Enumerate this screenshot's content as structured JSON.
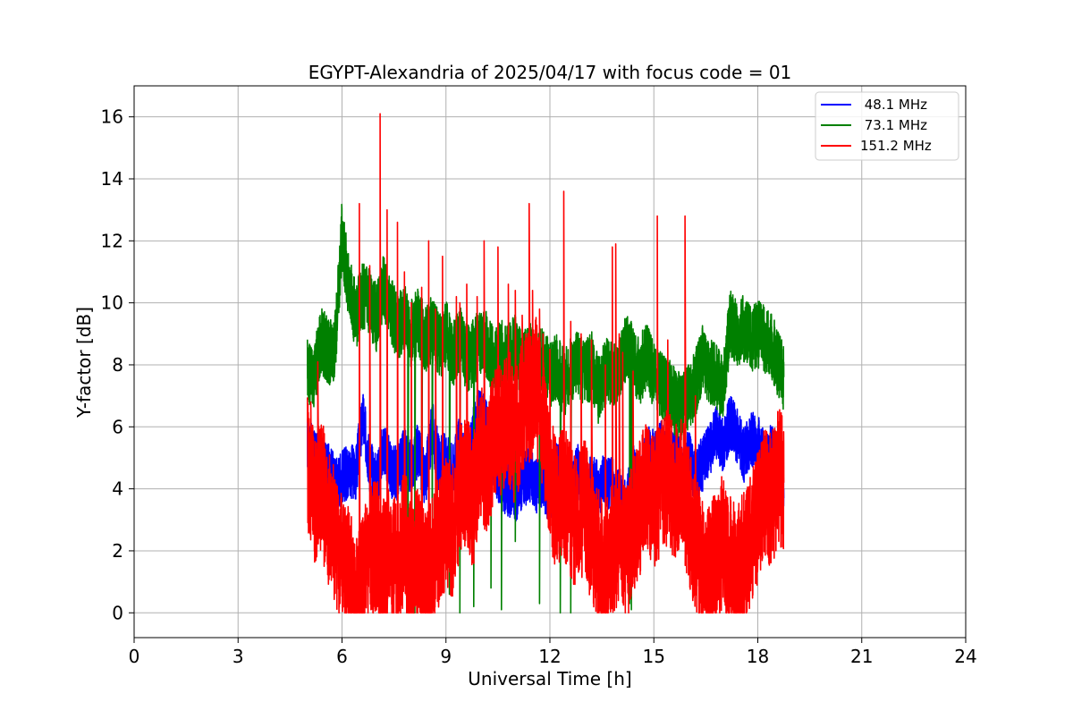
{
  "chart_data": {
    "type": "line",
    "title": "EGYPT-Alexandria of 2025/04/17 with focus code = 01",
    "xlabel": "Universal Time [h]",
    "ylabel": "Y-factor [dB]",
    "xlim": [
      0,
      24
    ],
    "ylim": [
      -0.8,
      17
    ],
    "xticks": [
      0,
      3,
      6,
      9,
      12,
      15,
      18,
      21,
      24
    ],
    "yticks": [
      0,
      2,
      4,
      6,
      8,
      10,
      12,
      14,
      16
    ],
    "grid": true,
    "legend_position": "top-right",
    "series": [
      {
        "name": " 48.1 MHz",
        "color": "#0000ff",
        "x": [
          5.0,
          5.2,
          5.4,
          5.6,
          5.8,
          6.0,
          6.2,
          6.4,
          6.6,
          6.8,
          7.0,
          7.2,
          7.4,
          7.6,
          7.8,
          8.0,
          8.2,
          8.4,
          8.6,
          8.8,
          9.0,
          9.2,
          9.4,
          9.6,
          9.8,
          10.0,
          10.2,
          10.4,
          10.6,
          10.8,
          11.0,
          11.2,
          11.4,
          11.6,
          11.8,
          12.0,
          12.2,
          12.4,
          12.6,
          12.8,
          13.0,
          13.2,
          13.4,
          13.6,
          13.8,
          14.0,
          14.2,
          14.4,
          14.6,
          14.8,
          15.0,
          15.2,
          15.4,
          15.6,
          15.8,
          16.0,
          16.2,
          16.4,
          16.6,
          16.8,
          17.0,
          17.2,
          17.4,
          17.6,
          17.8,
          18.0,
          18.2,
          18.4,
          18.6,
          18.75
        ],
        "y": [
          5.5,
          5.0,
          4.8,
          4.6,
          4.2,
          4.4,
          4.6,
          4.5,
          6.3,
          4.8,
          4.2,
          5.4,
          4.6,
          4.5,
          5.1,
          4.7,
          5.3,
          4.2,
          6.0,
          4.8,
          5.0,
          4.6,
          5.5,
          4.4,
          5.8,
          6.5,
          5.9,
          4.8,
          4.2,
          4.0,
          3.8,
          4.2,
          4.5,
          4.1,
          4.3,
          3.6,
          4.8,
          4.4,
          3.9,
          4.6,
          3.8,
          4.2,
          4.0,
          4.3,
          4.1,
          3.7,
          3.3,
          4.6,
          3.8,
          5.2,
          5.0,
          5.3,
          4.8,
          5.1,
          4.7,
          5.0,
          4.4,
          4.8,
          5.3,
          5.8,
          5.4,
          6.2,
          5.7,
          5.1,
          5.6,
          5.5,
          4.9,
          5.2,
          4.6,
          3.7
        ]
      },
      {
        "name": " 73.1 MHz",
        "color": "#008000",
        "x": [
          5.0,
          5.2,
          5.4,
          5.6,
          5.8,
          6.0,
          6.2,
          6.4,
          6.6,
          6.8,
          7.0,
          7.2,
          7.4,
          7.6,
          7.8,
          8.0,
          8.2,
          8.4,
          8.6,
          8.8,
          9.0,
          9.2,
          9.4,
          9.6,
          9.8,
          10.0,
          10.2,
          10.4,
          10.6,
          10.8,
          11.0,
          11.2,
          11.4,
          11.6,
          11.8,
          12.0,
          12.2,
          12.4,
          12.6,
          12.8,
          13.0,
          13.2,
          13.4,
          13.6,
          13.8,
          14.0,
          14.2,
          14.4,
          14.6,
          14.8,
          15.0,
          15.2,
          15.4,
          15.6,
          15.8,
          16.0,
          16.2,
          16.4,
          16.6,
          16.8,
          17.0,
          17.2,
          17.4,
          17.6,
          17.8,
          18.0,
          18.2,
          18.4,
          18.6,
          18.75
        ],
        "y": [
          7.9,
          7.6,
          8.8,
          8.4,
          8.6,
          12.2,
          10.4,
          9.6,
          10.2,
          10.0,
          9.5,
          10.6,
          9.8,
          9.2,
          9.6,
          9.0,
          9.4,
          8.8,
          9.2,
          8.6,
          9.0,
          8.4,
          8.8,
          8.2,
          8.4,
          8.8,
          8.6,
          8.0,
          8.4,
          8.2,
          8.6,
          8.0,
          8.4,
          7.8,
          8.2,
          7.6,
          8.0,
          7.4,
          7.8,
          8.2,
          7.6,
          8.0,
          7.2,
          7.8,
          7.6,
          8.0,
          8.6,
          8.2,
          7.8,
          8.4,
          7.6,
          7.4,
          7.2,
          6.8,
          6.6,
          6.9,
          7.4,
          8.2,
          7.8,
          7.6,
          7.3,
          9.4,
          9.0,
          9.2,
          8.8,
          9.0,
          8.8,
          8.6,
          8.0,
          7.6
        ]
      },
      {
        "name": "151.2 MHz",
        "color": "#ff0000",
        "x": [
          5.0,
          5.2,
          5.4,
          5.6,
          5.8,
          6.0,
          6.2,
          6.4,
          6.6,
          6.8,
          7.0,
          7.2,
          7.4,
          7.6,
          7.8,
          8.0,
          8.2,
          8.4,
          8.6,
          8.8,
          9.0,
          9.2,
          9.4,
          9.6,
          9.8,
          10.0,
          10.2,
          10.4,
          10.6,
          10.8,
          11.0,
          11.2,
          11.4,
          11.6,
          11.8,
          12.0,
          12.2,
          12.4,
          12.6,
          12.8,
          13.0,
          13.2,
          13.4,
          13.6,
          13.8,
          14.0,
          14.2,
          14.4,
          14.6,
          14.8,
          15.0,
          15.2,
          15.4,
          15.6,
          15.8,
          16.0,
          16.2,
          16.4,
          16.6,
          16.8,
          17.0,
          17.2,
          17.4,
          17.6,
          17.8,
          18.0,
          18.2,
          18.4,
          18.6,
          18.75
        ],
        "y": [
          5.0,
          3.5,
          4.2,
          3.0,
          2.5,
          1.8,
          1.2,
          0.6,
          1.0,
          1.8,
          2.2,
          1.5,
          2.0,
          1.2,
          2.5,
          1.4,
          2.0,
          1.0,
          1.6,
          2.4,
          3.0,
          2.6,
          3.8,
          4.2,
          3.6,
          5.2,
          4.6,
          5.8,
          6.0,
          6.4,
          5.6,
          6.6,
          7.0,
          7.4,
          6.0,
          4.2,
          3.4,
          4.0,
          3.2,
          2.8,
          3.6,
          2.4,
          1.8,
          1.4,
          2.0,
          2.6,
          1.8,
          2.8,
          3.4,
          4.2,
          3.6,
          4.0,
          4.4,
          3.8,
          4.2,
          3.2,
          2.2,
          1.6,
          1.2,
          1.8,
          2.4,
          1.6,
          1.2,
          1.8,
          2.4,
          3.0,
          4.0,
          3.6,
          4.4,
          4.2
        ]
      }
    ],
    "spikes": [
      {
        "series": "151.2 MHz",
        "x": [
          5.1,
          5.3,
          6.5,
          6.8,
          7.1,
          7.3,
          7.6,
          7.8,
          8.0,
          8.3,
          8.5,
          8.7,
          8.9,
          9.3,
          9.4,
          9.6,
          9.9,
          10.1,
          10.5,
          10.8,
          11.0,
          11.2,
          11.4,
          11.5,
          11.7,
          11.8,
          12.0,
          12.4,
          12.6,
          12.9,
          13.2,
          13.6,
          13.8,
          13.9,
          14.0,
          14.1,
          14.4,
          15.1,
          15.4,
          15.9,
          16.2
        ],
        "y": [
          6.8,
          8.1,
          13.2,
          11.2,
          16.1,
          13.0,
          12.6,
          11.0,
          10.0,
          10.5,
          12.0,
          9.8,
          11.5,
          10.2,
          10.0,
          10.6,
          10.2,
          12.0,
          11.8,
          10.6,
          10.4,
          9.6,
          13.2,
          10.4,
          9.8,
          9.0,
          8.5,
          13.6,
          9.4,
          9.0,
          8.8,
          8.0,
          11.8,
          11.9,
          9.0,
          8.4,
          7.8,
          12.8,
          8.8,
          12.8,
          7.0
        ]
      },
      {
        "series": " 73.1 MHz",
        "x": [
          7.9,
          8.1,
          8.3,
          8.6,
          9.1,
          9.4,
          9.8,
          10.3,
          10.6,
          11.0,
          11.7,
          12.3,
          12.6,
          14.3,
          14.35
        ],
        "y": [
          0.0,
          0.0,
          0.1,
          0.2,
          0.6,
          0.0,
          0.2,
          0.8,
          0.1,
          2.3,
          0.3,
          0.0,
          0.0,
          0.3,
          0.1
        ]
      }
    ]
  }
}
